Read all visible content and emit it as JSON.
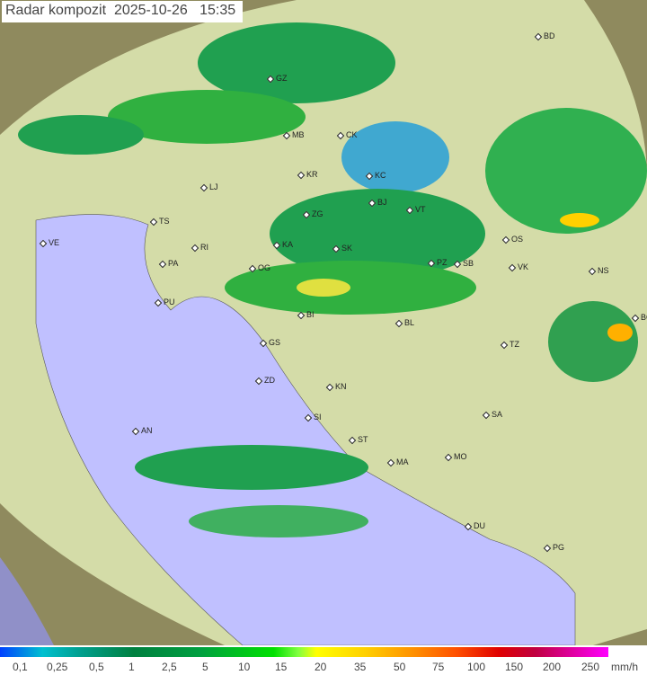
{
  "title": "Radar kompozit  2025-10-26   15:35",
  "cities": [
    "BD",
    "GZ",
    "MB",
    "CK",
    "LJ",
    "KR",
    "KC",
    "BJ",
    "VT",
    "ZG",
    "TS",
    "VE",
    "RI",
    "KA",
    "SK",
    "OS",
    "PA",
    "PZ",
    "SB",
    "VK",
    "NS",
    "PU",
    "OG",
    "BI",
    "BL",
    "BG",
    "GS",
    "TZ",
    "ZD",
    "KN",
    "SI",
    "SA",
    "AN",
    "ST",
    "MA",
    "MO",
    "DU",
    "PG"
  ],
  "legend": {
    "ticks": [
      "0,1",
      "0,25",
      "0,5",
      "1",
      "2,5",
      "5",
      "10",
      "15",
      "20",
      "35",
      "50",
      "75",
      "100",
      "150",
      "200",
      "250"
    ],
    "unit": "mm/h"
  },
  "colors": {
    "sea": "#c0c0ff",
    "land": "#d8e0a8",
    "outside": "#a09868",
    "rain_light": "#40b0d0",
    "rain_mid": "#00a040",
    "rain_heavy": "#ffd000"
  }
}
